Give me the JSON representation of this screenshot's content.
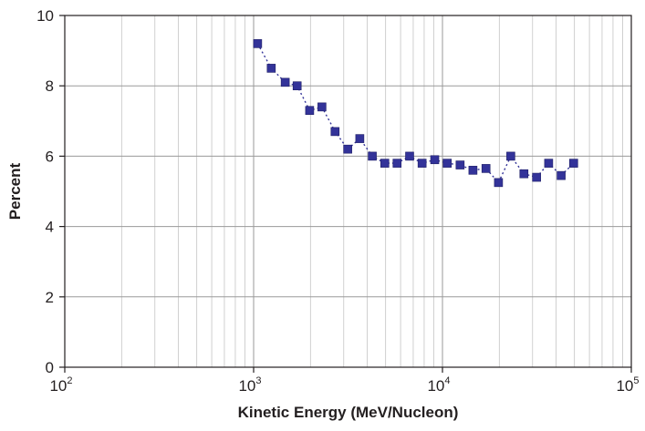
{
  "chart_data": {
    "type": "scatter",
    "xlabel": "Kinetic Energy (MeV/Nucleon)",
    "ylabel": "Percent",
    "x_scale": "log",
    "xlim": [
      100,
      100000
    ],
    "ylim": [
      0,
      10
    ],
    "x_ticks": [
      {
        "base": "10",
        "exp": "2",
        "value": 100
      },
      {
        "base": "10",
        "exp": "3",
        "value": 1000
      },
      {
        "base": "10",
        "exp": "4",
        "value": 10000
      },
      {
        "base": "10",
        "exp": "5",
        "value": 100000
      }
    ],
    "y_ticks": [
      "0",
      "2",
      "4",
      "6",
      "8",
      "10"
    ],
    "grid": true,
    "series": [
      {
        "color": "#333399",
        "line_style": "dotted",
        "marker": "square",
        "points": [
          {
            "x": 1050,
            "y": 9.2
          },
          {
            "x": 1240,
            "y": 8.5
          },
          {
            "x": 1470,
            "y": 8.1
          },
          {
            "x": 1700,
            "y": 8.0
          },
          {
            "x": 1980,
            "y": 7.3
          },
          {
            "x": 2300,
            "y": 7.4
          },
          {
            "x": 2700,
            "y": 6.7
          },
          {
            "x": 3150,
            "y": 6.2
          },
          {
            "x": 3650,
            "y": 6.5
          },
          {
            "x": 4250,
            "y": 6.0
          },
          {
            "x": 4950,
            "y": 5.8
          },
          {
            "x": 5750,
            "y": 5.8
          },
          {
            "x": 6700,
            "y": 6.0
          },
          {
            "x": 7800,
            "y": 5.8
          },
          {
            "x": 9100,
            "y": 5.9
          },
          {
            "x": 10600,
            "y": 5.8
          },
          {
            "x": 12400,
            "y": 5.75
          },
          {
            "x": 14500,
            "y": 5.6
          },
          {
            "x": 17000,
            "y": 5.65
          },
          {
            "x": 19800,
            "y": 5.25
          },
          {
            "x": 23000,
            "y": 6.0
          },
          {
            "x": 27000,
            "y": 5.5
          },
          {
            "x": 31500,
            "y": 5.4
          },
          {
            "x": 36500,
            "y": 5.8
          },
          {
            "x": 42500,
            "y": 5.45
          },
          {
            "x": 49500,
            "y": 5.8
          }
        ]
      }
    ]
  }
}
